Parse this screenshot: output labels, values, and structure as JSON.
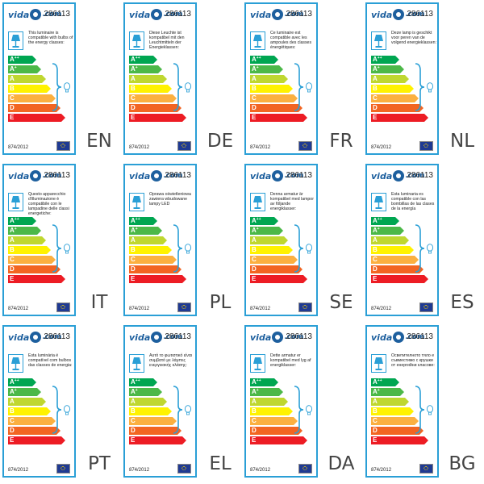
{
  "product_code": "286113",
  "regulation": "874/2012",
  "logo": {
    "part1": "vida",
    "part2": ".com"
  },
  "classes": [
    {
      "letter": "A",
      "sup": "++",
      "color": "#00a651"
    },
    {
      "letter": "A",
      "sup": "+",
      "color": "#4cb848"
    },
    {
      "letter": "A",
      "sup": "",
      "color": "#bfd730"
    },
    {
      "letter": "B",
      "sup": "",
      "color": "#fff200"
    },
    {
      "letter": "C",
      "sup": "",
      "color": "#fbb040"
    },
    {
      "letter": "D",
      "sup": "",
      "color": "#f26522"
    },
    {
      "letter": "E",
      "sup": "",
      "color": "#ed1c24"
    }
  ],
  "labels": [
    {
      "lang": "EN",
      "text": "This luminaire is compatible with bulbs of the energy classes:"
    },
    {
      "lang": "DE",
      "text": "Diese Leuchte ist kompatibel mit den Leuchtmitteln der Energieklassen:"
    },
    {
      "lang": "FR",
      "text": "Ce luminaire est compatible avec les ampoules des classes énergétiques:"
    },
    {
      "lang": "NL",
      "text": "Deze lamp is geschikt voor peren van de volgend energieklassen:"
    },
    {
      "lang": "IT",
      "text": "Questo apparecchio d'illuminazione è compatibile con le lampadine delle classi energetiche:"
    },
    {
      "lang": "PL",
      "text": "Oprawa oświetleniowa zawiera wbudowane lampy LED"
    },
    {
      "lang": "SE",
      "text": "Denna armatur är kompatibel med lampor av följande energiklasser:"
    },
    {
      "lang": "ES",
      "text": "Esta luminaria es compatible con las bombillas de las clases de la energía"
    },
    {
      "lang": "PT",
      "text": "Esta luminária é compatível com bulbos das classes de energia:"
    },
    {
      "lang": "EL",
      "text": "Αυτό το φωτιστικό είναι συμβατό με λάμπες ενεργειακής κλάσης:"
    },
    {
      "lang": "DA",
      "text": "Dette armatur er kompatibel med lyg af energiklasser:"
    },
    {
      "lang": "BG",
      "text": "Осветителното тяло е съвместимо с крушки от енергийни класове:"
    }
  ]
}
